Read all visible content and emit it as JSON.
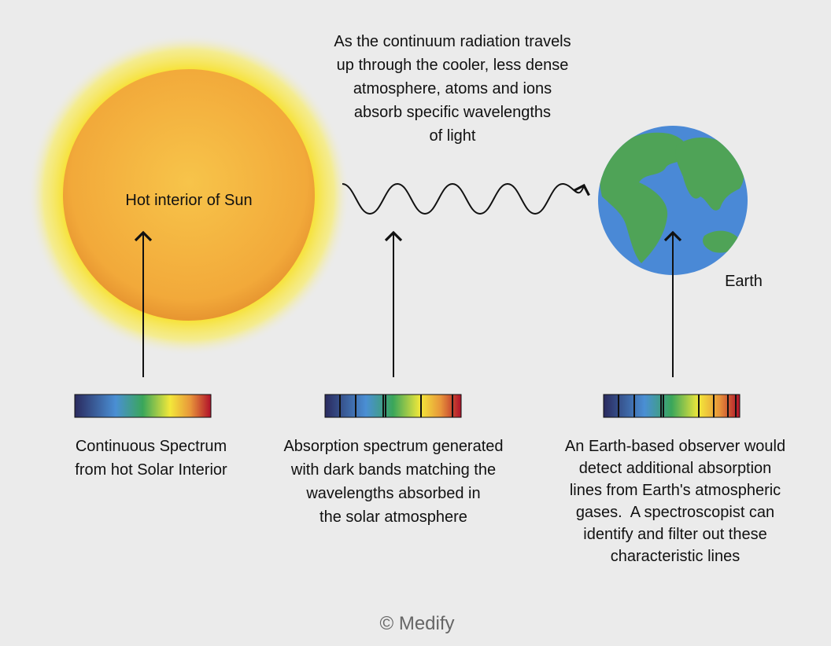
{
  "sun": {
    "label": "Hot interior of Sun"
  },
  "caption": {
    "lines": [
      "As the continuum radiation travels",
      "up through the cooler, less dense",
      "atmosphere, atoms and ions",
      "absorb specific wavelengths",
      "of light"
    ]
  },
  "earth": {
    "label": "Earth"
  },
  "spectra": [
    {
      "lines": [
        "Continuous Spectrum",
        "from hot Solar Interior"
      ]
    },
    {
      "lines": [
        "Absorption spectrum generated",
        "with dark bands matching the",
        "wavelengths absorbed in",
        "the solar atmosphere"
      ]
    },
    {
      "lines": [
        "An Earth-based observer would",
        "detect additional absorption",
        "lines from Earth's atmospheric",
        "gases.  A spectroscopist can",
        "identify and filter out these",
        "characteristic lines"
      ]
    }
  ],
  "credit": "© Medify"
}
